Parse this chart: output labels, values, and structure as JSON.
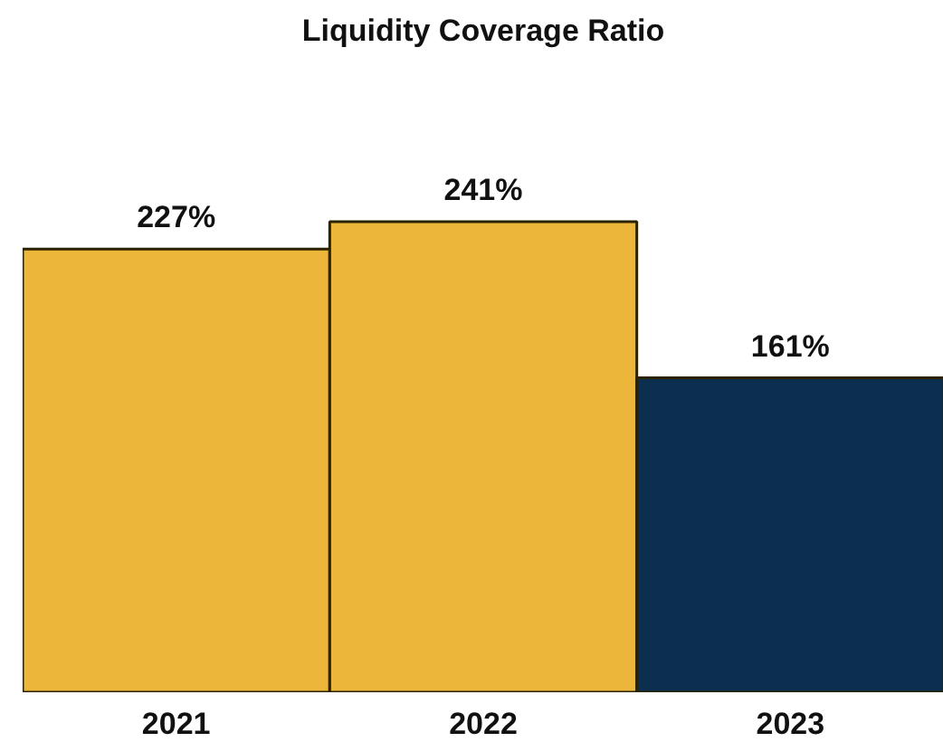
{
  "chart_data": {
    "type": "bar",
    "title": "Liquidity Coverage Ratio",
    "categories": [
      "2021",
      "2022",
      "2023"
    ],
    "values": [
      227,
      241,
      161
    ],
    "colors": [
      "#ecb63a",
      "#ecb63a",
      "#0d2f4f"
    ],
    "value_labels": [
      "227%",
      "241%",
      "161%"
    ],
    "tick_labels": "x",
    "grid": false
  }
}
